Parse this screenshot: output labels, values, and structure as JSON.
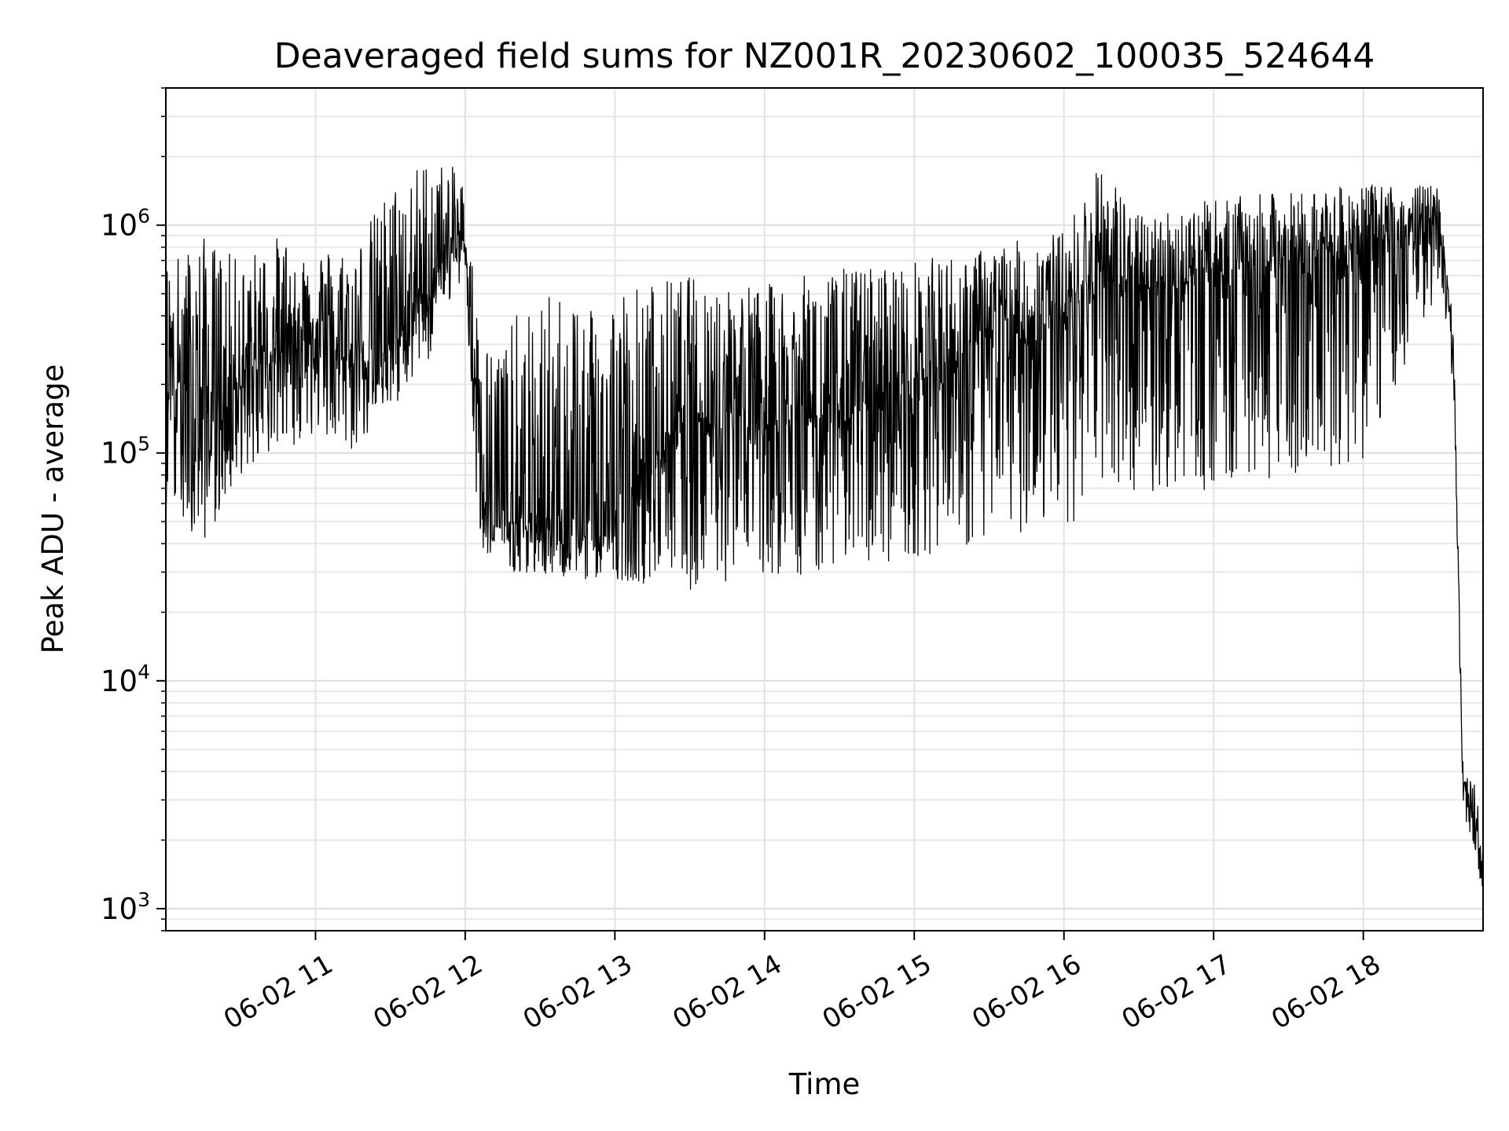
{
  "chart_data": {
    "type": "line",
    "title": "Deaveraged field sums for NZ001R_20230602_100035_524644",
    "xlabel": "Time",
    "ylabel": "Peak ADU - average",
    "yscale": "log",
    "xlim": [
      "2023-06-02 10:00",
      "2023-06-02 18:48"
    ],
    "ylim": [
      800,
      4000000
    ],
    "grid": true,
    "line_color": "#000000",
    "x_tick_labels": [
      "06-02 11",
      "06-02 12",
      "06-02 13",
      "06-02 14",
      "06-02 15",
      "06-02 16",
      "06-02 17",
      "06-02 18"
    ],
    "y_ticks": [
      {
        "base": "10",
        "exp": "3",
        "value": 1000
      },
      {
        "base": "10",
        "exp": "4",
        "value": 10000
      },
      {
        "base": "10",
        "exp": "5",
        "value": 100000
      },
      {
        "base": "10",
        "exp": "6",
        "value": 1000000
      }
    ],
    "series": [
      {
        "x": [
          "2023-06-02 10:00",
          "2023-06-02 10:15",
          "2023-06-02 10:30",
          "2023-06-02 10:45",
          "2023-06-02 11:00",
          "2023-06-02 11:15",
          "2023-06-02 11:30",
          "2023-06-02 11:45",
          "2023-06-02 11:55",
          "2023-06-02 12:00",
          "2023-06-02 12:05",
          "2023-06-02 12:10",
          "2023-06-02 12:20",
          "2023-06-02 12:40",
          "2023-06-02 13:00",
          "2023-06-02 13:30",
          "2023-06-02 14:00",
          "2023-06-02 14:30",
          "2023-06-02 15:00",
          "2023-06-02 15:30",
          "2023-06-02 16:00",
          "2023-06-02 16:15",
          "2023-06-02 16:30",
          "2023-06-02 17:00",
          "2023-06-02 17:30",
          "2023-06-02 18:00",
          "2023-06-02 18:20",
          "2023-06-02 18:30",
          "2023-06-02 18:36",
          "2023-06-02 18:40",
          "2023-06-02 18:45",
          "2023-06-02 18:48"
        ],
        "y": [
          250000,
          150000,
          200000,
          300000,
          350000,
          250000,
          300000,
          500000,
          800000,
          900000,
          150000,
          50000,
          50000,
          45000,
          50000,
          150000,
          150000,
          150000,
          200000,
          300000,
          400000,
          600000,
          500000,
          600000,
          700000,
          800000,
          900000,
          1100000,
          300000,
          3500,
          2500,
          1200
        ],
        "envelope_high": [
          700000,
          900000,
          700000,
          900000,
          800000,
          800000,
          1500000,
          2000000,
          1800000,
          1500000,
          400000,
          300000,
          400000,
          550000,
          550000,
          600000,
          550000,
          650000,
          700000,
          800000,
          950000,
          1900000,
          1100000,
          1300000,
          1400000,
          1500000,
          1500000,
          1500000,
          400000,
          4000,
          3500,
          1800
        ],
        "envelope_low": [
          60000,
          40000,
          80000,
          100000,
          120000,
          100000,
          150000,
          250000,
          500000,
          600000,
          40000,
          30000,
          30000,
          28000,
          28000,
          25000,
          28000,
          30000,
          35000,
          40000,
          50000,
          50000,
          60000,
          70000,
          80000,
          90000,
          300000,
          500000,
          200000,
          2500,
          1800,
          1100
        ]
      }
    ]
  }
}
